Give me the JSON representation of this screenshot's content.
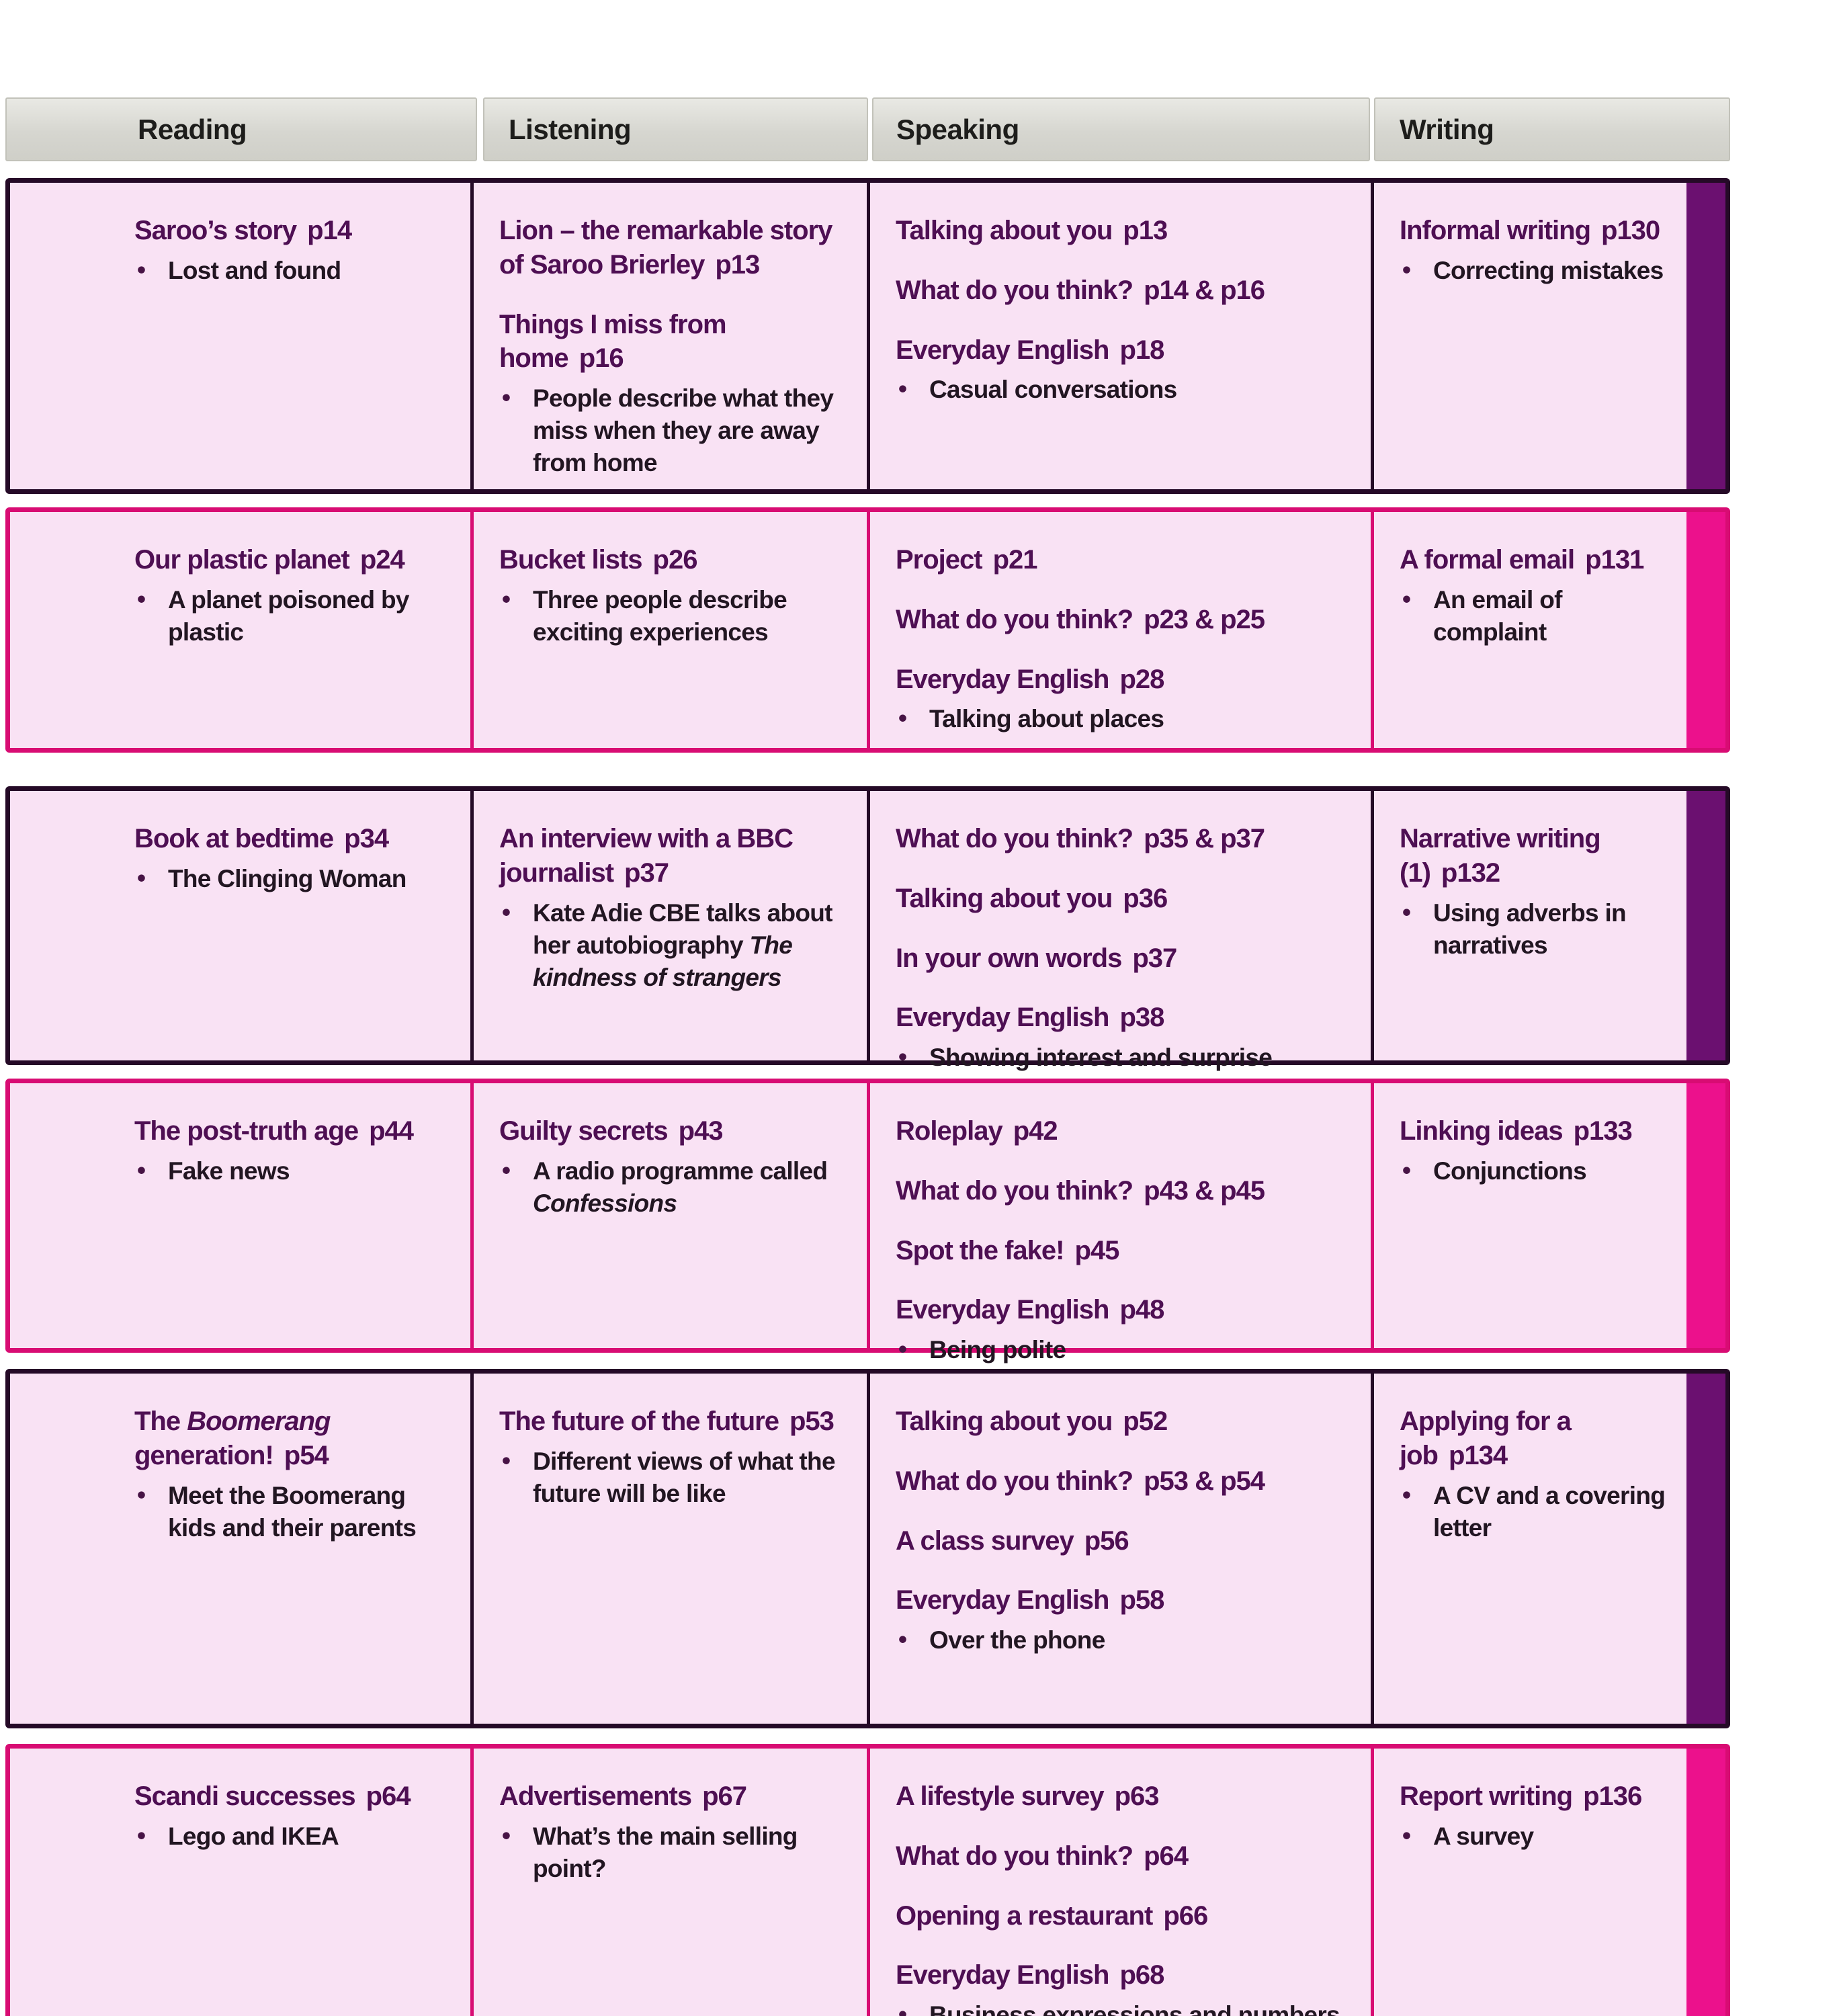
{
  "colors": {
    "header_bg": "#d6d6d0",
    "header_text": "#1d1d1b",
    "cell_bg": "#f9e2f4",
    "title_text": "#4e0f53",
    "body_text": "#221622",
    "purple_border": "#250a27",
    "purple_strip": "#6b1070",
    "pink_border": "#d80c73",
    "pink_strip": "#ec118c"
  },
  "header": {
    "columns": [
      {
        "label": "Reading"
      },
      {
        "label": "Listening"
      },
      {
        "label": "Speaking"
      },
      {
        "label": "Writing"
      }
    ]
  },
  "rows": [
    {
      "accent": "purple",
      "reading": {
        "blocks": [
          {
            "text": "Saroo’s story",
            "page": "p14",
            "bullets": [
              {
                "text": "Lost and found"
              }
            ]
          }
        ]
      },
      "listening": {
        "blocks": [
          {
            "text": "Lion – the remarkable story of Saroo Brierley",
            "page": "p13"
          },
          {
            "text": "Things I miss from home",
            "page": "p16",
            "bullets": [
              {
                "text": "People describe what they miss when they are away from home"
              }
            ]
          }
        ]
      },
      "speaking": {
        "blocks": [
          {
            "text": "Talking about you",
            "page": "p13"
          },
          {
            "text": "What do you think?",
            "page": "p14 & p16"
          },
          {
            "text": "Everyday English",
            "page": "p18",
            "bullets": [
              {
                "text": "Casual conversations"
              }
            ]
          }
        ]
      },
      "writing": {
        "blocks": [
          {
            "text": "Informal writing",
            "page": "p130",
            "bullets": [
              {
                "text": "Correcting mistakes"
              }
            ]
          }
        ]
      }
    },
    {
      "accent": "pink",
      "reading": {
        "blocks": [
          {
            "text": "Our plastic planet",
            "page": "p24",
            "bullets": [
              {
                "text": "A planet poisoned by plastic"
              }
            ]
          }
        ]
      },
      "listening": {
        "blocks": [
          {
            "text": "Bucket lists",
            "page": "p26",
            "bullets": [
              {
                "text": "Three people describe exciting experiences"
              }
            ]
          }
        ]
      },
      "speaking": {
        "blocks": [
          {
            "text": "Project",
            "page": "p21"
          },
          {
            "text": "What do you think?",
            "page": "p23 & p25"
          },
          {
            "text": "Everyday English",
            "page": "p28",
            "bullets": [
              {
                "text": "Talking about places"
              }
            ]
          }
        ]
      },
      "writing": {
        "blocks": [
          {
            "text": "A formal email",
            "page": "p131",
            "bullets": [
              {
                "text": "An email of complaint"
              }
            ]
          }
        ]
      }
    },
    {
      "accent": "purple",
      "reading": {
        "blocks": [
          {
            "text": "Book at bedtime",
            "page": "p34",
            "bullets": [
              {
                "text": "The Clinging Woman"
              }
            ]
          }
        ]
      },
      "listening": {
        "blocks": [
          {
            "text": "An interview with a BBC journalist",
            "page": "p37",
            "bullets": [
              {
                "pre": "Kate Adie CBE talks about her autobiography ",
                "italic": "The kindness of strangers",
                "post": ""
              }
            ]
          }
        ]
      },
      "speaking": {
        "blocks": [
          {
            "text": "What do you think?",
            "page": "p35 & p37"
          },
          {
            "text": "Talking about you",
            "page": "p36"
          },
          {
            "text": "In your own words",
            "page": "p37"
          },
          {
            "text": "Everyday English",
            "page": "p38",
            "bullets": [
              {
                "text": "Showing interest and surprise"
              }
            ]
          }
        ]
      },
      "writing": {
        "blocks": [
          {
            "text": "Narrative writing (1)",
            "page": "p132",
            "bullets": [
              {
                "text": "Using adverbs in narratives"
              }
            ]
          }
        ]
      }
    },
    {
      "accent": "pink",
      "reading": {
        "blocks": [
          {
            "text": "The post-truth age",
            "page": "p44",
            "bullets": [
              {
                "text": "Fake news"
              }
            ]
          }
        ]
      },
      "listening": {
        "blocks": [
          {
            "text": "Guilty secrets",
            "page": "p43",
            "bullets": [
              {
                "pre": "A radio programme called ",
                "italic": "Confessions",
                "post": ""
              }
            ]
          }
        ]
      },
      "speaking": {
        "blocks": [
          {
            "text": "Roleplay",
            "page": "p42"
          },
          {
            "text": "What do you think?",
            "page": "p43 & p45"
          },
          {
            "text": "Spot the fake!",
            "page": "p45"
          },
          {
            "text": "Everyday English",
            "page": "p48",
            "bullets": [
              {
                "text": "Being polite"
              }
            ]
          }
        ]
      },
      "writing": {
        "blocks": [
          {
            "text": "Linking ideas",
            "page": "p133",
            "bullets": [
              {
                "text": "Conjunctions"
              }
            ]
          }
        ]
      }
    },
    {
      "accent": "purple",
      "reading": {
        "blocks": [
          {
            "pre": "The ",
            "italic": "Boomerang",
            "post": " generation!",
            "page": "p54",
            "bullets": [
              {
                "text": "Meet the Boomerang kids and their parents"
              }
            ]
          }
        ]
      },
      "listening": {
        "blocks": [
          {
            "text": "The future of the future",
            "page": "p53",
            "bullets": [
              {
                "text": "Different views of what the future will be like"
              }
            ]
          }
        ]
      },
      "speaking": {
        "blocks": [
          {
            "text": "Talking about you",
            "page": "p52"
          },
          {
            "text": "What do you think?",
            "page": "p53 & p54"
          },
          {
            "text": "A class survey",
            "page": "p56"
          },
          {
            "text": "Everyday English",
            "page": "p58",
            "bullets": [
              {
                "text": "Over the phone"
              }
            ]
          }
        ]
      },
      "writing": {
        "blocks": [
          {
            "text": "Applying for a job",
            "page": "p134",
            "bullets": [
              {
                "text": "A CV and a covering letter"
              }
            ]
          }
        ]
      }
    },
    {
      "accent": "pink",
      "reading": {
        "blocks": [
          {
            "text": "Scandi successes",
            "page": "p64",
            "bullets": [
              {
                "text": "Lego and IKEA"
              }
            ]
          }
        ]
      },
      "listening": {
        "blocks": [
          {
            "text": "Advertisements",
            "page": "p67",
            "bullets": [
              {
                "text": "What’s the main selling point?"
              }
            ]
          }
        ]
      },
      "speaking": {
        "blocks": [
          {
            "text": "A lifestyle survey",
            "page": "p63"
          },
          {
            "text": "What do you think?",
            "page": "p64"
          },
          {
            "text": "Opening a restaurant",
            "page": "p66"
          },
          {
            "text": "Everyday English",
            "page": "p68",
            "bullets": [
              {
                "text": "Business expressions and numbers"
              }
            ]
          }
        ]
      },
      "writing": {
        "blocks": [
          {
            "text": "Report writing",
            "page": "p136",
            "bullets": [
              {
                "text": "A survey"
              }
            ]
          }
        ]
      }
    }
  ]
}
